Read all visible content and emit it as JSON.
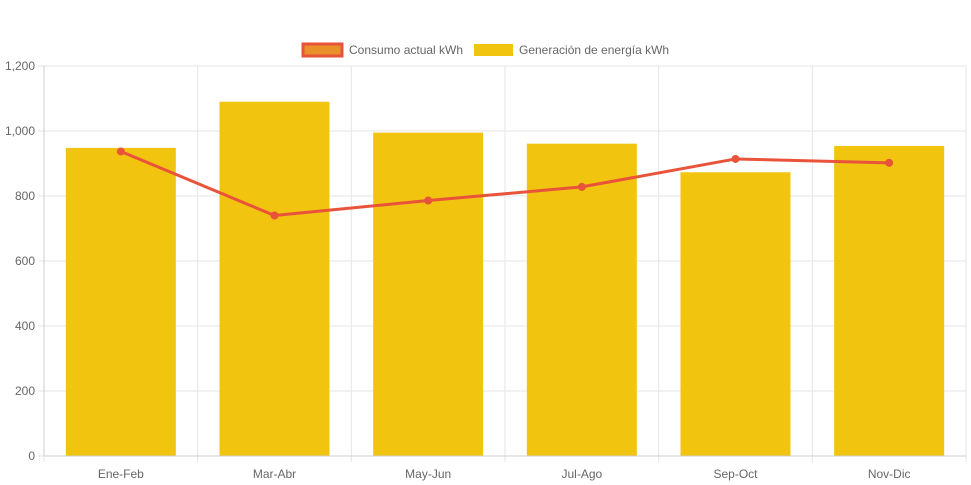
{
  "chart_data": {
    "type": "bar",
    "categories": [
      "Ene-Feb",
      "Mar-Abr",
      "May-Jun",
      "Jul-Ago",
      "Sep-Oct",
      "Nov-Dic"
    ],
    "series": [
      {
        "name": "Consumo actual kWh",
        "type": "line",
        "values": [
          937,
          740,
          786,
          828,
          914,
          902
        ]
      },
      {
        "name": "Generación de energía kWh",
        "type": "bar",
        "values": [
          948,
          1090,
          995,
          961,
          873,
          954
        ]
      }
    ],
    "ylim": [
      0,
      1200
    ],
    "yticks": [
      "0",
      "200",
      "400",
      "600",
      "800",
      "1,000",
      "1,200"
    ],
    "ytick_values": [
      0,
      200,
      400,
      600,
      800,
      1000,
      1200
    ],
    "grid": true,
    "legend_position": "top-center",
    "colors": {
      "line": "#e8533a",
      "line_point": "#e8533a",
      "line_legend_fill": "#e8902a",
      "bar": "#f1c40f",
      "grid": "#e6e6e6",
      "axis": "#cccccc",
      "text": "#666666"
    }
  }
}
